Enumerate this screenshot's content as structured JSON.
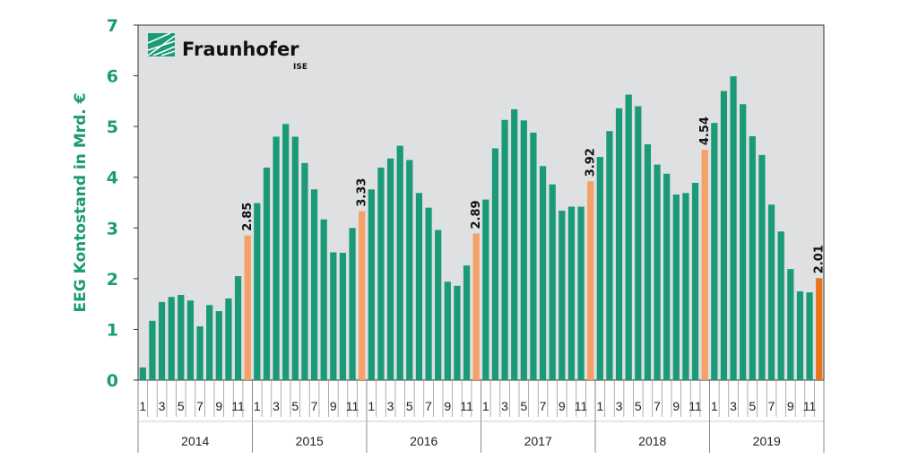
{
  "chart_data": {
    "type": "bar",
    "title": "",
    "xlabel": "",
    "ylabel": "EEG Kontostand in Mrd. €",
    "ylim": [
      0,
      7
    ],
    "yticks": [
      "0",
      "1",
      "2",
      "3",
      "4",
      "5",
      "6",
      "7"
    ],
    "grid": false,
    "years": [
      "2014",
      "2015",
      "2016",
      "2017",
      "2018",
      "2019"
    ],
    "month_ticks": [
      "1",
      "3",
      "5",
      "7",
      "9",
      "11"
    ],
    "series": [
      {
        "name": "2014",
        "values": [
          0.25,
          1.17,
          1.54,
          1.64,
          1.68,
          1.57,
          1.06,
          1.48,
          1.36,
          1.61,
          2.05,
          2.85
        ]
      },
      {
        "name": "2015",
        "values": [
          3.49,
          4.19,
          4.8,
          5.05,
          4.8,
          4.28,
          3.76,
          3.17,
          2.52,
          2.51,
          3.0,
          3.33
        ]
      },
      {
        "name": "2016",
        "values": [
          3.76,
          4.19,
          4.37,
          4.62,
          4.34,
          3.69,
          3.4,
          2.96,
          1.94,
          1.86,
          2.26,
          2.89
        ]
      },
      {
        "name": "2017",
        "values": [
          3.56,
          4.57,
          5.13,
          5.34,
          5.12,
          4.88,
          4.22,
          3.86,
          3.34,
          3.42,
          3.42,
          3.92
        ]
      },
      {
        "name": "2018",
        "values": [
          4.4,
          4.91,
          5.36,
          5.63,
          5.4,
          4.65,
          4.25,
          4.07,
          3.66,
          3.69,
          3.89,
          4.54
        ]
      },
      {
        "name": "2019",
        "values": [
          5.07,
          5.7,
          5.99,
          5.44,
          4.81,
          4.44,
          3.46,
          2.93,
          2.19,
          1.75,
          1.73,
          2.01
        ]
      }
    ],
    "data_labels": [
      "2.85",
      "3.33",
      "2.89",
      "3.92",
      "4.54",
      "2.01"
    ],
    "colors": {
      "bar": "#1a9a78",
      "december": "#f5a066",
      "latest": "#e8731c",
      "plot_bg": "#dfe0e2",
      "axis_text": "#1a9a78"
    }
  },
  "logo": {
    "name": "Fraunhofer",
    "sub": "ISE"
  }
}
